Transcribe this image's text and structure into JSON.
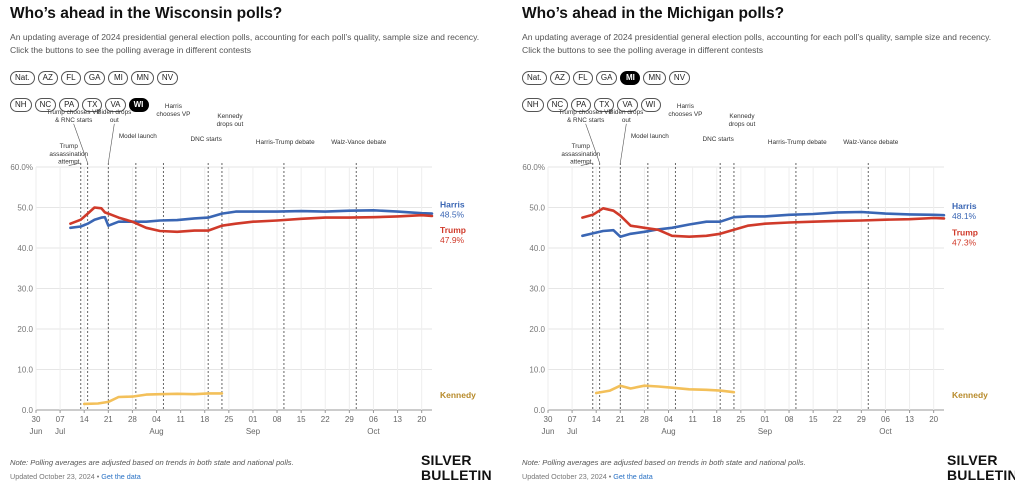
{
  "panels": [
    {
      "title": "Who’s ahead in the Wisconsin polls?",
      "subtitle": "An updating average of 2024 presidential general election polls, accounting for each poll’s quality, sample size and recency. Click the buttons to see the polling average in different contests",
      "buttons_row1": [
        "Nat.",
        "AZ",
        "FL",
        "GA",
        "MI",
        "MN",
        "NV"
      ],
      "buttons_row2": [
        "NH",
        "NC",
        "PA",
        "TX",
        "VA",
        "WI"
      ],
      "active": "WI",
      "note": "Note: Polling averages are adjusted based on trends in both state and national polls.",
      "updated": "Updated October 23, 2024 •",
      "get_data": "Get the data",
      "logo_line1": "SILVER",
      "logo_line2": "BULLETIN"
    },
    {
      "title": "Who’s ahead in the Michigan polls?",
      "subtitle": "An updating average of 2024 presidential general election polls, accounting for each poll’s quality, sample size and recency. Click the buttons to see the polling average in different contests",
      "buttons_row1": [
        "Nat.",
        "AZ",
        "FL",
        "GA",
        "MI",
        "MN",
        "NV"
      ],
      "buttons_row2": [
        "NH",
        "NC",
        "PA",
        "TX",
        "VA",
        "WI"
      ],
      "active": "MI",
      "note": "Note: Polling averages are adjusted based on trends in both state and national polls.",
      "updated": "Updated October 23, 2024 •",
      "get_data": "Get the data",
      "logo_line1": "SILVER",
      "logo_line2": "BULLETIN"
    }
  ],
  "colors": {
    "harris": "#3a66b4",
    "trump": "#d03a2a",
    "kennedy": "#f3c05a",
    "kennedy_label": "#b78a2a"
  },
  "chart_data": [
    {
      "type": "line",
      "ylim": [
        0,
        60
      ],
      "yticks": [
        0,
        10,
        20,
        30,
        40,
        50,
        60
      ],
      "ytick_labels": [
        "0.0",
        "10.0",
        "20.0",
        "30.0",
        "40.0",
        "50.0",
        "60.0%"
      ],
      "x_domain": [
        "2024-06-30",
        "2024-10-23"
      ],
      "xticks": [
        {
          "date": "2024-06-30",
          "label": "30",
          "month": "Jun"
        },
        {
          "date": "2024-07-07",
          "label": "07",
          "month": "Jul"
        },
        {
          "date": "2024-07-14",
          "label": "14"
        },
        {
          "date": "2024-07-21",
          "label": "21"
        },
        {
          "date": "2024-07-28",
          "label": "28"
        },
        {
          "date": "2024-08-04",
          "label": "04",
          "month": "Aug"
        },
        {
          "date": "2024-08-11",
          "label": "11"
        },
        {
          "date": "2024-08-18",
          "label": "18"
        },
        {
          "date": "2024-08-25",
          "label": "25"
        },
        {
          "date": "2024-09-01",
          "label": "01",
          "month": "Sep"
        },
        {
          "date": "2024-09-08",
          "label": "08"
        },
        {
          "date": "2024-09-15",
          "label": "15"
        },
        {
          "date": "2024-09-22",
          "label": "22"
        },
        {
          "date": "2024-09-29",
          "label": "29"
        },
        {
          "date": "2024-10-06",
          "label": "06",
          "month": "Oct"
        },
        {
          "date": "2024-10-13",
          "label": "13"
        },
        {
          "date": "2024-10-20",
          "label": "20"
        }
      ],
      "events": [
        {
          "date": "2024-07-13",
          "label": [
            "Trump",
            "assassination",
            "attempt"
          ]
        },
        {
          "date": "2024-07-15",
          "label": [
            "Trump chooses VP",
            "& RNC starts"
          ]
        },
        {
          "date": "2024-07-21",
          "label": [
            "Biden drops",
            "out"
          ]
        },
        {
          "date": "2024-07-29",
          "label": [
            "Model launch"
          ]
        },
        {
          "date": "2024-08-06",
          "label": [
            "Harris",
            "chooses VP"
          ]
        },
        {
          "date": "2024-08-19",
          "label": [
            "DNC starts"
          ]
        },
        {
          "date": "2024-08-23",
          "label": [
            "Kennedy",
            "drops out"
          ]
        },
        {
          "date": "2024-09-10",
          "label": [
            "Harris-Trump debate"
          ]
        },
        {
          "date": "2024-10-01",
          "label": [
            "Walz-Vance debate"
          ]
        }
      ],
      "series": [
        {
          "name": "Harris",
          "end_value": "48.5%",
          "x": [
            "2024-07-10",
            "2024-07-13",
            "2024-07-15",
            "2024-07-17",
            "2024-07-19",
            "2024-07-20",
            "2024-07-21",
            "2024-07-24",
            "2024-07-28",
            "2024-08-01",
            "2024-08-05",
            "2024-08-10",
            "2024-08-15",
            "2024-08-19",
            "2024-08-23",
            "2024-08-27",
            "2024-09-01",
            "2024-09-08",
            "2024-09-15",
            "2024-09-22",
            "2024-09-29",
            "2024-10-06",
            "2024-10-13",
            "2024-10-20",
            "2024-10-23"
          ],
          "values": [
            45,
            45.3,
            46,
            47,
            47.5,
            47.6,
            45.5,
            46.5,
            46.5,
            46.5,
            46.8,
            46.9,
            47.3,
            47.5,
            48.5,
            49,
            49,
            49,
            49.1,
            49,
            49.2,
            49.3,
            49,
            48.6,
            48.5
          ]
        },
        {
          "name": "Trump",
          "end_value": "47.9%",
          "x": [
            "2024-07-10",
            "2024-07-13",
            "2024-07-15",
            "2024-07-17",
            "2024-07-19",
            "2024-07-20",
            "2024-07-21",
            "2024-07-24",
            "2024-07-28",
            "2024-08-01",
            "2024-08-05",
            "2024-08-10",
            "2024-08-15",
            "2024-08-19",
            "2024-08-23",
            "2024-08-27",
            "2024-09-01",
            "2024-09-08",
            "2024-09-15",
            "2024-09-22",
            "2024-09-29",
            "2024-10-06",
            "2024-10-13",
            "2024-10-20",
            "2024-10-23"
          ],
          "values": [
            46,
            47,
            48.5,
            50,
            49.8,
            48.8,
            48.5,
            47.5,
            46.5,
            45,
            44.2,
            44,
            44.3,
            44.3,
            45.5,
            46,
            46.5,
            46.8,
            47.2,
            47.5,
            47.5,
            47.6,
            47.8,
            48.1,
            47.9
          ]
        },
        {
          "name": "Kennedy",
          "x": [
            "2024-07-14",
            "2024-07-18",
            "2024-07-21",
            "2024-07-24",
            "2024-07-28",
            "2024-08-01",
            "2024-08-05",
            "2024-08-10",
            "2024-08-15",
            "2024-08-19",
            "2024-08-23"
          ],
          "values": [
            1.5,
            1.6,
            2,
            3.2,
            3.3,
            3.8,
            3.9,
            4,
            3.9,
            4.1,
            4.1
          ]
        }
      ]
    },
    {
      "type": "line",
      "ylim": [
        0,
        60
      ],
      "yticks": [
        0,
        10,
        20,
        30,
        40,
        50,
        60
      ],
      "ytick_labels": [
        "0.0",
        "10.0",
        "20.0",
        "30.0",
        "40.0",
        "50.0",
        "60.0%"
      ],
      "x_domain": [
        "2024-06-30",
        "2024-10-23"
      ],
      "xticks": [
        {
          "date": "2024-06-30",
          "label": "30",
          "month": "Jun"
        },
        {
          "date": "2024-07-07",
          "label": "07",
          "month": "Jul"
        },
        {
          "date": "2024-07-14",
          "label": "14"
        },
        {
          "date": "2024-07-21",
          "label": "21"
        },
        {
          "date": "2024-07-28",
          "label": "28"
        },
        {
          "date": "2024-08-04",
          "label": "04",
          "month": "Aug"
        },
        {
          "date": "2024-08-11",
          "label": "11"
        },
        {
          "date": "2024-08-18",
          "label": "18"
        },
        {
          "date": "2024-08-25",
          "label": "25"
        },
        {
          "date": "2024-09-01",
          "label": "01",
          "month": "Sep"
        },
        {
          "date": "2024-09-08",
          "label": "08"
        },
        {
          "date": "2024-09-15",
          "label": "15"
        },
        {
          "date": "2024-09-22",
          "label": "22"
        },
        {
          "date": "2024-09-29",
          "label": "29"
        },
        {
          "date": "2024-10-06",
          "label": "06",
          "month": "Oct"
        },
        {
          "date": "2024-10-13",
          "label": "13"
        },
        {
          "date": "2024-10-20",
          "label": "20"
        }
      ],
      "events": [
        {
          "date": "2024-07-13",
          "label": [
            "Trump",
            "assassination",
            "attempt"
          ]
        },
        {
          "date": "2024-07-15",
          "label": [
            "Trump chooses VP",
            "& RNC starts"
          ]
        },
        {
          "date": "2024-07-21",
          "label": [
            "Biden drops",
            "out"
          ]
        },
        {
          "date": "2024-07-29",
          "label": [
            "Model launch"
          ]
        },
        {
          "date": "2024-08-06",
          "label": [
            "Harris",
            "chooses VP"
          ]
        },
        {
          "date": "2024-08-19",
          "label": [
            "DNC starts"
          ]
        },
        {
          "date": "2024-08-23",
          "label": [
            "Kennedy",
            "drops out"
          ]
        },
        {
          "date": "2024-09-10",
          "label": [
            "Harris-Trump debate"
          ]
        },
        {
          "date": "2024-10-01",
          "label": [
            "Walz-Vance debate"
          ]
        }
      ],
      "series": [
        {
          "name": "Harris",
          "end_value": "48.1%",
          "x": [
            "2024-07-10",
            "2024-07-13",
            "2024-07-16",
            "2024-07-19",
            "2024-07-21",
            "2024-07-24",
            "2024-07-28",
            "2024-08-01",
            "2024-08-05",
            "2024-08-10",
            "2024-08-15",
            "2024-08-19",
            "2024-08-23",
            "2024-08-27",
            "2024-09-01",
            "2024-09-08",
            "2024-09-15",
            "2024-09-22",
            "2024-09-29",
            "2024-10-06",
            "2024-10-13",
            "2024-10-20",
            "2024-10-23"
          ],
          "values": [
            43,
            43.6,
            44.2,
            44.4,
            42.8,
            43.5,
            44,
            44.6,
            45,
            45.8,
            46.5,
            46.5,
            47.6,
            47.8,
            47.8,
            48.2,
            48.4,
            48.8,
            48.9,
            48.5,
            48.3,
            48.2,
            48.1
          ]
        },
        {
          "name": "Trump",
          "end_value": "47.3%",
          "x": [
            "2024-07-10",
            "2024-07-13",
            "2024-07-16",
            "2024-07-19",
            "2024-07-21",
            "2024-07-24",
            "2024-07-28",
            "2024-08-01",
            "2024-08-05",
            "2024-08-10",
            "2024-08-15",
            "2024-08-19",
            "2024-08-23",
            "2024-08-27",
            "2024-09-01",
            "2024-09-08",
            "2024-09-15",
            "2024-09-22",
            "2024-09-29",
            "2024-10-06",
            "2024-10-13",
            "2024-10-20",
            "2024-10-23"
          ],
          "values": [
            47.5,
            48.2,
            49.8,
            49.2,
            48,
            45.5,
            45,
            44.5,
            43,
            42.8,
            43,
            43.5,
            44.5,
            45.5,
            46,
            46.3,
            46.5,
            46.7,
            46.8,
            47,
            47.1,
            47.4,
            47.3
          ]
        },
        {
          "name": "Kennedy",
          "x": [
            "2024-07-14",
            "2024-07-18",
            "2024-07-21",
            "2024-07-24",
            "2024-07-28",
            "2024-08-01",
            "2024-08-05",
            "2024-08-10",
            "2024-08-15",
            "2024-08-19",
            "2024-08-23"
          ],
          "values": [
            4.2,
            4.8,
            6,
            5.3,
            6,
            5.8,
            5.5,
            5.1,
            5,
            4.8,
            4.4
          ]
        }
      ]
    }
  ]
}
